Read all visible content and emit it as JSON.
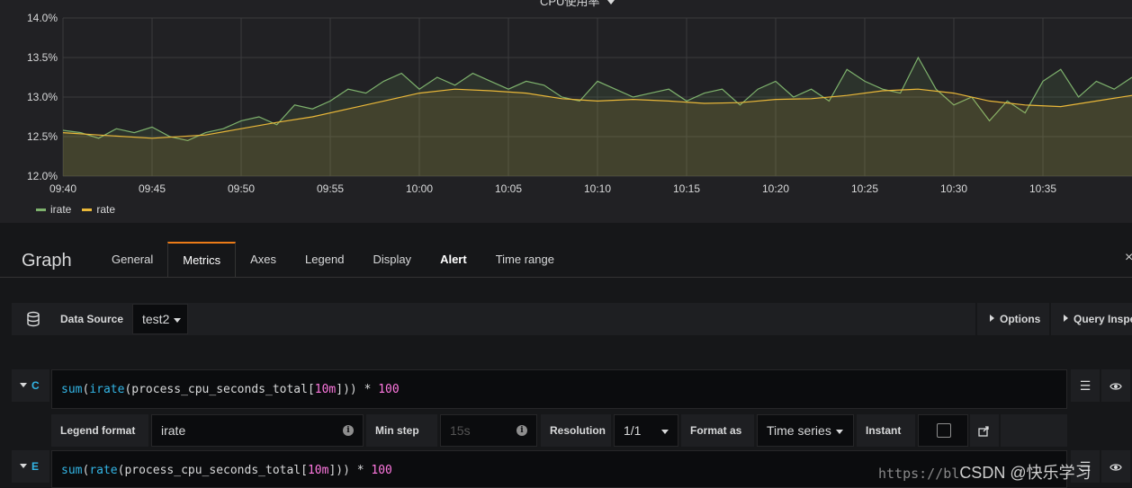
{
  "chart": {
    "title": "CPU使用率",
    "legend": [
      {
        "name": "irate",
        "color": "#7eb26d"
      },
      {
        "name": "rate",
        "color": "#eab839"
      }
    ]
  },
  "chart_data": {
    "type": "line",
    "title": "CPU使用率",
    "y_ticks": [
      "14.0%",
      "13.5%",
      "13.0%",
      "12.5%",
      "12.0%"
    ],
    "ylim": [
      12.0,
      14.0
    ],
    "x_ticks": [
      "09:40",
      "09:45",
      "09:50",
      "09:55",
      "10:00",
      "10:05",
      "10:10",
      "10:15",
      "10:20",
      "10:25",
      "10:30",
      "10:35"
    ],
    "xlim_minutes": [
      0,
      60
    ],
    "grid": true,
    "legend_position": "bottom-left",
    "series": [
      {
        "name": "irate",
        "color": "#7eb26d",
        "points": [
          [
            0,
            12.58
          ],
          [
            1,
            12.55
          ],
          [
            2,
            12.48
          ],
          [
            3,
            12.6
          ],
          [
            4,
            12.55
          ],
          [
            5,
            12.62
          ],
          [
            6,
            12.5
          ],
          [
            7,
            12.45
          ],
          [
            8,
            12.55
          ],
          [
            9,
            12.6
          ],
          [
            10,
            12.7
          ],
          [
            11,
            12.75
          ],
          [
            12,
            12.65
          ],
          [
            13,
            12.9
          ],
          [
            14,
            12.85
          ],
          [
            15,
            12.95
          ],
          [
            16,
            13.1
          ],
          [
            17,
            13.05
          ],
          [
            18,
            13.2
          ],
          [
            19,
            13.3
          ],
          [
            20,
            13.1
          ],
          [
            21,
            13.25
          ],
          [
            22,
            13.15
          ],
          [
            23,
            13.3
          ],
          [
            24,
            13.2
          ],
          [
            25,
            13.1
          ],
          [
            26,
            13.2
          ],
          [
            27,
            13.15
          ],
          [
            28,
            13.0
          ],
          [
            29,
            12.95
          ],
          [
            30,
            13.2
          ],
          [
            31,
            13.1
          ],
          [
            32,
            13.0
          ],
          [
            33,
            13.05
          ],
          [
            34,
            13.1
          ],
          [
            35,
            12.95
          ],
          [
            36,
            13.05
          ],
          [
            37,
            13.1
          ],
          [
            38,
            12.9
          ],
          [
            39,
            13.1
          ],
          [
            40,
            13.2
          ],
          [
            41,
            13.0
          ],
          [
            42,
            13.1
          ],
          [
            43,
            12.95
          ],
          [
            44,
            13.35
          ],
          [
            45,
            13.2
          ],
          [
            46,
            13.1
          ],
          [
            47,
            13.05
          ],
          [
            48,
            13.5
          ],
          [
            49,
            13.1
          ],
          [
            50,
            12.9
          ],
          [
            51,
            13.0
          ],
          [
            52,
            12.7
          ],
          [
            53,
            12.95
          ],
          [
            54,
            12.8
          ],
          [
            55,
            13.2
          ],
          [
            56,
            13.35
          ],
          [
            57,
            13.0
          ],
          [
            58,
            13.2
          ],
          [
            59,
            13.1
          ],
          [
            60,
            13.25
          ]
        ]
      },
      {
        "name": "rate",
        "color": "#eab839",
        "points": [
          [
            0,
            12.55
          ],
          [
            2,
            12.52
          ],
          [
            5,
            12.48
          ],
          [
            8,
            12.52
          ],
          [
            10,
            12.6
          ],
          [
            12,
            12.68
          ],
          [
            14,
            12.75
          ],
          [
            16,
            12.85
          ],
          [
            18,
            12.95
          ],
          [
            20,
            13.05
          ],
          [
            22,
            13.1
          ],
          [
            24,
            13.08
          ],
          [
            26,
            13.05
          ],
          [
            28,
            12.98
          ],
          [
            30,
            12.95
          ],
          [
            32,
            12.97
          ],
          [
            34,
            12.95
          ],
          [
            36,
            12.92
          ],
          [
            38,
            12.93
          ],
          [
            40,
            12.97
          ],
          [
            42,
            12.98
          ],
          [
            44,
            13.02
          ],
          [
            46,
            13.08
          ],
          [
            48,
            13.1
          ],
          [
            50,
            13.05
          ],
          [
            52,
            12.95
          ],
          [
            54,
            12.9
          ],
          [
            56,
            12.88
          ],
          [
            58,
            12.95
          ],
          [
            60,
            13.02
          ]
        ]
      }
    ]
  },
  "editor": {
    "title": "Graph",
    "tabs": [
      "General",
      "Metrics",
      "Axes",
      "Legend",
      "Display",
      "Alert",
      "Time range"
    ],
    "active_tab": "Metrics",
    "close": "×",
    "datasource": {
      "label": "Data Source",
      "value": "test2"
    },
    "options_label": "Options",
    "query_inspector_label": "Query Inspector"
  },
  "queries": [
    {
      "refId": "C",
      "fn1": "sum",
      "fn2": "irate",
      "metric": "process_cpu_seconds_total",
      "range": "10m",
      "op": " * ",
      "mult": "100"
    },
    {
      "refId": "E",
      "fn1": "sum",
      "fn2": "rate",
      "metric": "process_cpu_seconds_total",
      "range": "10m",
      "op": " * ",
      "mult": "100"
    }
  ],
  "query_options": {
    "legend_format_label": "Legend format",
    "legend_format_value": "irate",
    "min_step_label": "Min step",
    "min_step_placeholder": "15s",
    "resolution_label": "Resolution",
    "resolution_value": "1/1",
    "format_as_label": "Format as",
    "format_as_value": "Time series",
    "instant_label": "Instant"
  },
  "watermark": {
    "url": "https://bl",
    "text": "CSDN @快乐学习"
  }
}
